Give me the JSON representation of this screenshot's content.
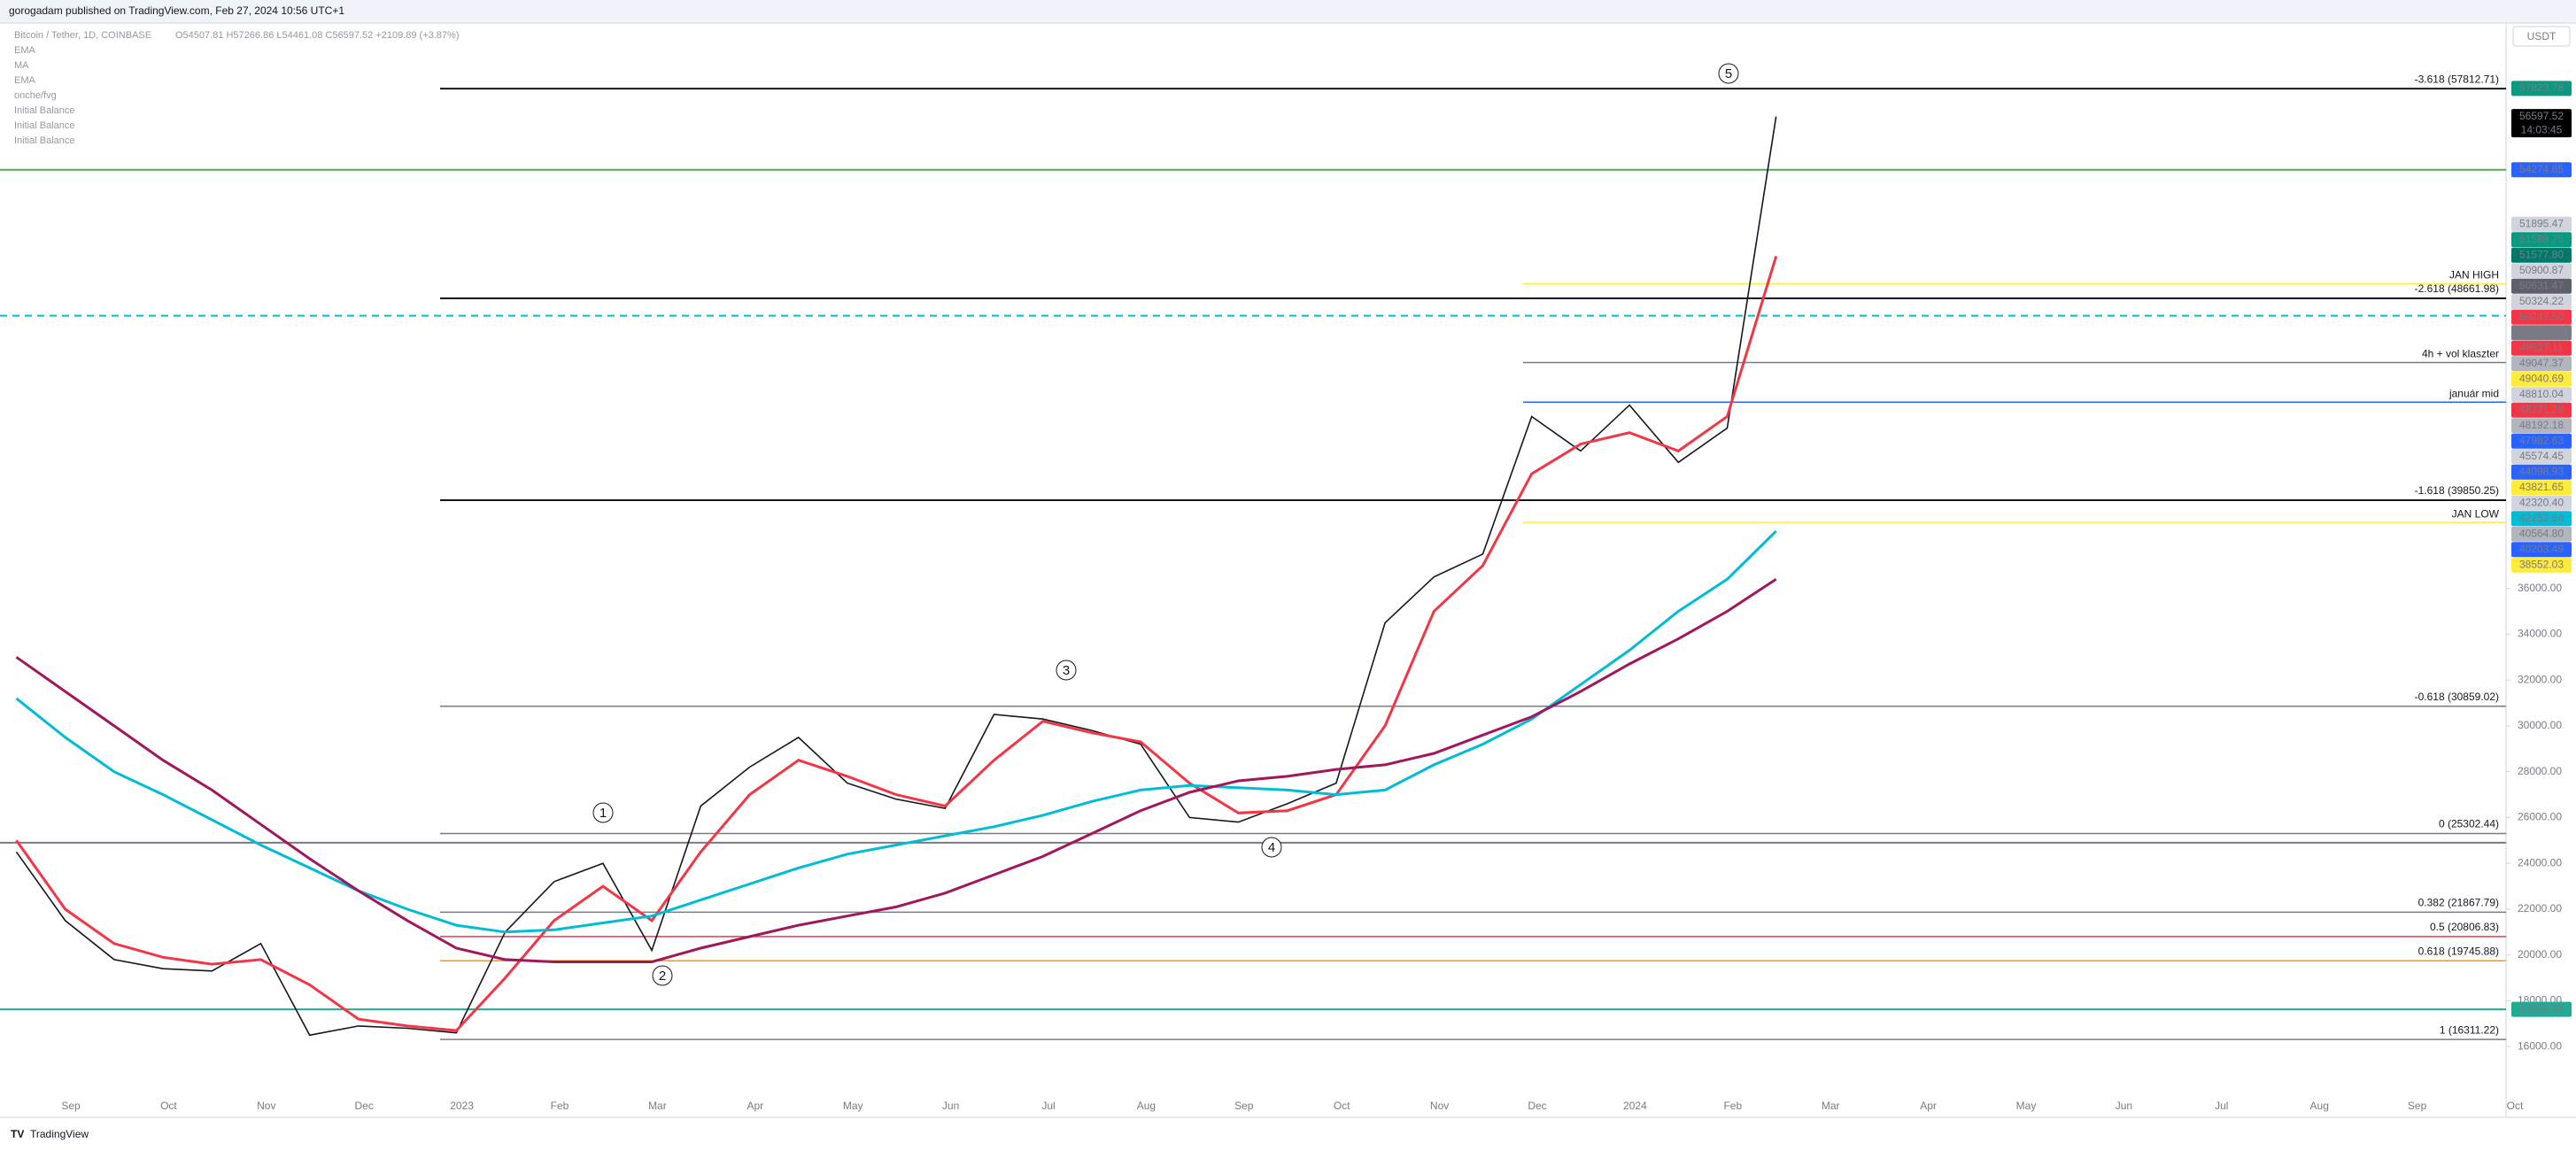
{
  "header": {
    "publisher": "gorogadam published on TradingView.com, Feb 27, 2024 10:56 UTC+1",
    "symbol": "Bitcoin / Tether, 1D, COINBASE",
    "ohlc": "O54507.81 H57266.86 L54461.08 C56597.52 +2109.89 (+3.87%)"
  },
  "currency": "USDT",
  "footer": "TradingView",
  "waves": [
    "1",
    "2",
    "3",
    "4",
    "5"
  ],
  "chart_data": {
    "type": "line",
    "ylim": [
      14000,
      60600
    ],
    "yticks": [
      {
        "value": 16000,
        "label": "16000.00"
      },
      {
        "value": 18000,
        "label": "18000.00"
      },
      {
        "value": 20000,
        "label": "20000.00"
      },
      {
        "value": 22000,
        "label": "22000.00"
      },
      {
        "value": 24000,
        "label": "24000.00"
      },
      {
        "value": 26000,
        "label": "26000.00"
      },
      {
        "value": 28000,
        "label": "28000.00"
      },
      {
        "value": 30000,
        "label": "30000.00"
      },
      {
        "value": 32000,
        "label": "32000.00"
      },
      {
        "value": 34000,
        "label": "34000.00"
      },
      {
        "value": 36000,
        "label": "36000.00"
      }
    ],
    "time_labels": [
      "Sep",
      "Oct",
      "Nov",
      "Dec",
      "2023",
      "Feb",
      "Mar",
      "Apr",
      "May",
      "Jun",
      "Jul",
      "Aug",
      "Sep",
      "Oct",
      "Nov",
      "Dec",
      "2024",
      "Feb",
      "Mar",
      "Apr",
      "May",
      "Jun",
      "Jul",
      "Aug",
      "Sep",
      "Oct"
    ],
    "series": [
      {
        "color": "#131722",
        "values": [
          24500,
          21500,
          19800,
          19400,
          19300,
          20500,
          16500,
          16900,
          16800,
          16600,
          21000,
          23200,
          24000,
          20200,
          26500,
          28200,
          29500,
          27500,
          26800,
          26400,
          30500,
          30300,
          29800,
          29200,
          26000,
          25800,
          26600,
          27500,
          34500,
          36500,
          37500,
          43500,
          42000,
          44000,
          41500,
          43000,
          56597.52
        ]
      },
      {
        "name": "EMA",
        "color": "#f23645",
        "values": [
          25000,
          22000,
          20500,
          19900,
          19600,
          19800,
          18700,
          17200,
          16900,
          16700,
          19000,
          21500,
          23000,
          21500,
          24500,
          27000,
          28500,
          27800,
          27000,
          26500,
          28500,
          30200,
          29700,
          29300,
          27500,
          26200,
          26300,
          27000,
          30000,
          35000,
          37000,
          41000,
          42300,
          42800,
          42000,
          43500,
          50500
        ]
      },
      {
        "name": "MA",
        "color": "#00bcd4",
        "values": [
          31200,
          29500,
          28000,
          27000,
          25900,
          24800,
          23800,
          22800,
          22000,
          21300,
          21000,
          21100,
          21400,
          21700,
          22400,
          23100,
          23800,
          24400,
          24800,
          25200,
          25600,
          26100,
          26700,
          27200,
          27400,
          27300,
          27200,
          27000,
          27200,
          28300,
          29200,
          30300,
          31800,
          33300,
          35000,
          36400,
          38500
        ]
      },
      {
        "name": "EMA",
        "color": "#a0185b",
        "values": [
          33000,
          31500,
          30000,
          28500,
          27200,
          25700,
          24200,
          22800,
          21500,
          20300,
          19800,
          19700,
          19700,
          19700,
          20300,
          20800,
          21300,
          21700,
          22100,
          22700,
          23500,
          24300,
          25300,
          26300,
          27100,
          27600,
          27800,
          28100,
          28300,
          28800,
          29600,
          30400,
          31500,
          32700,
          33800,
          35000,
          36400
        ]
      }
    ],
    "other_indicators": [
      "onche/fvg",
      "Initial Balance",
      "Initial Balance",
      "Initial Balance"
    ],
    "levels": [
      {
        "label": "-3.618 (57812.71)",
        "value": 57812.71,
        "color": "#131722"
      },
      {
        "label": "-2.618 (48661.98)",
        "value": 48661.98,
        "color": "#131722"
      },
      {
        "label": "-1.618 (39850.25)",
        "value": 39850.25,
        "color": "#131722"
      },
      {
        "label": "-0.618 (30859.02)",
        "value": 30859.02,
        "color": "#787b86"
      },
      {
        "label": "0 (25302.44)",
        "value": 25302.44,
        "color": "#787b86"
      },
      {
        "label": "0.382 (21867.79)",
        "value": 21867.79,
        "color": "#787b86"
      },
      {
        "label": "0.5 (20806.83)",
        "value": 20806.83,
        "color": "#f23645"
      },
      {
        "label": "0.618 (19745.88)",
        "value": 19745.88,
        "color": "#ff9800"
      },
      {
        "label": "1 (16311.22)",
        "value": 16311.22,
        "color": "#787b86"
      }
    ],
    "notes": [
      {
        "label": "JAN HIGH",
        "value": 49300,
        "color": "#ffeb3b"
      },
      {
        "label": "4h + vol klaszter",
        "value": 45860,
        "color": "#787b86"
      },
      {
        "label": "január mid",
        "value": 44130,
        "color": "#2962ff"
      },
      {
        "label": "JAN LOW",
        "value": 38880,
        "color": "#ffeb3b"
      }
    ],
    "lines": [
      {
        "value": 54274.85,
        "color": "#4caf50"
      },
      {
        "value": 47900,
        "color": "#00bcd4",
        "dashed": true
      },
      {
        "value": 24900,
        "color": "#787b86"
      },
      {
        "value": 17626.94,
        "color": "#22ab94"
      }
    ],
    "last_price_countdown": "14:03:45",
    "price_badges": [
      {
        "value": 57823.78,
        "color": "#089981"
      },
      {
        "value": 56597.52,
        "color": "#000000"
      },
      {
        "value": 54274.85,
        "color": "#2962ff"
      },
      {
        "value": 51895.47,
        "color": "#d1d4dc"
      },
      {
        "value": 51589.75,
        "color": "#089981"
      },
      {
        "value": 51577.8,
        "label": "51577.80",
        "color": "#00796b"
      },
      {
        "value": 50900.87,
        "color": "#d1d4dc"
      },
      {
        "value": 50631.47,
        "color": "#5d606b"
      },
      {
        "value": 50324.22,
        "color": "#d1d4dc"
      },
      {
        "value": 50247.5,
        "label": "50247.50",
        "color": "#f23645"
      },
      {
        "value": 49897.12,
        "color": "#787b86"
      },
      {
        "value": 49527.11,
        "color": "#f23645"
      },
      {
        "value": 49047.37,
        "color": "#b2b5be"
      },
      {
        "value": 49040.69,
        "color": "#ffeb3b"
      },
      {
        "value": 48810.04,
        "color": "#d1d4dc"
      },
      {
        "value": 48271.28,
        "color": "#f23645"
      },
      {
        "value": 48192.18,
        "color": "#b2b5be"
      },
      {
        "value": 47982.63,
        "color": "#2962ff"
      },
      {
        "value": 45574.45,
        "color": "#d1d4dc"
      },
      {
        "value": 44098.93,
        "color": "#2962ff"
      },
      {
        "value": 43821.65,
        "color": "#ffeb3b"
      },
      {
        "value": 42320.4,
        "label": "42320.40",
        "color": "#d1d4dc"
      },
      {
        "value": 42252.66,
        "color": "#00bcd4"
      },
      {
        "value": 40564.8,
        "label": "40564.80",
        "color": "#b2b5be"
      },
      {
        "value": 40203.49,
        "color": "#2962ff"
      },
      {
        "value": 38552.03,
        "color": "#ffeb3b"
      },
      {
        "value": 17626.94,
        "color": "#22ab94"
      }
    ]
  }
}
